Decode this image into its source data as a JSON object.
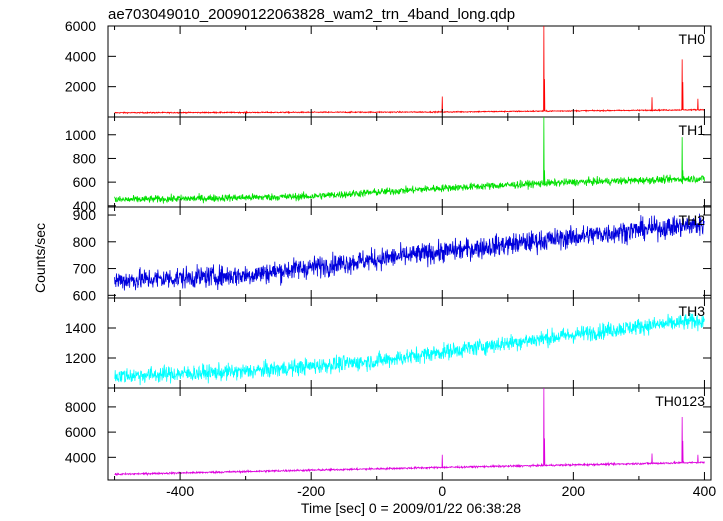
{
  "chart_data": {
    "type": "line",
    "title": "ae703049010_20090122063828_wam2_trn_4band_long.qdp",
    "xlabel": "Time [sec] 0 = 2009/01/22 06:38:28",
    "ylabel": "Counts/sec",
    "xlim": [
      -510,
      410
    ],
    "xticks": [
      -400,
      -200,
      0,
      200,
      400
    ],
    "grid": false,
    "panels": [
      {
        "name": "TH0",
        "color": "#ff0000",
        "ylim": [
          0,
          6000
        ],
        "yticks": [
          2000,
          4000,
          6000
        ],
        "baseline": [
          [
            -500,
            280
          ],
          [
            0,
            330
          ],
          [
            400,
            480
          ]
        ],
        "noise": 25,
        "spikes": [
          [
            0,
            1350
          ],
          [
            155,
            6000
          ],
          [
            156,
            2500
          ],
          [
            320,
            1300
          ],
          [
            366,
            3800
          ],
          [
            367,
            2300
          ],
          [
            390,
            1200
          ]
        ]
      },
      {
        "name": "TH1",
        "color": "#00e000",
        "ylim": [
          390,
          1150
        ],
        "yticks": [
          400,
          600,
          800,
          1000
        ],
        "baseline": [
          [
            -500,
            450
          ],
          [
            -200,
            480
          ],
          [
            0,
            550
          ],
          [
            200,
            600
          ],
          [
            400,
            630
          ]
        ],
        "noise": 22,
        "spikes": [
          [
            155,
            1150
          ],
          [
            156,
            700
          ],
          [
            366,
            980
          ],
          [
            367,
            700
          ]
        ]
      },
      {
        "name": "TH2",
        "color": "#0000dd",
        "ylim": [
          590,
          930
        ],
        "yticks": [
          600,
          700,
          800,
          900
        ],
        "baseline": [
          [
            -500,
            655
          ],
          [
            -300,
            675
          ],
          [
            -100,
            735
          ],
          [
            100,
            790
          ],
          [
            300,
            845
          ],
          [
            400,
            865
          ]
        ],
        "noise": 28,
        "spikes": []
      },
      {
        "name": "TH3",
        "color": "#00ffff",
        "ylim": [
          1000,
          1600
        ],
        "yticks": [
          1200,
          1400
        ],
        "baseline": [
          [
            -500,
            1080
          ],
          [
            -300,
            1110
          ],
          [
            -100,
            1180
          ],
          [
            100,
            1300
          ],
          [
            300,
            1410
          ],
          [
            400,
            1450
          ]
        ],
        "noise": 38,
        "spikes": []
      },
      {
        "name": "TH0123",
        "color": "#dd00dd",
        "ylim": [
          2200,
          9500
        ],
        "yticks": [
          4000,
          6000,
          8000
        ],
        "baseline": [
          [
            -500,
            2650
          ],
          [
            0,
            3200
          ],
          [
            400,
            3600
          ]
        ],
        "noise": 50,
        "spikes": [
          [
            0,
            4200
          ],
          [
            155,
            9500
          ],
          [
            156,
            5500
          ],
          [
            320,
            4300
          ],
          [
            366,
            7200
          ],
          [
            367,
            5300
          ],
          [
            390,
            4200
          ]
        ]
      }
    ]
  }
}
